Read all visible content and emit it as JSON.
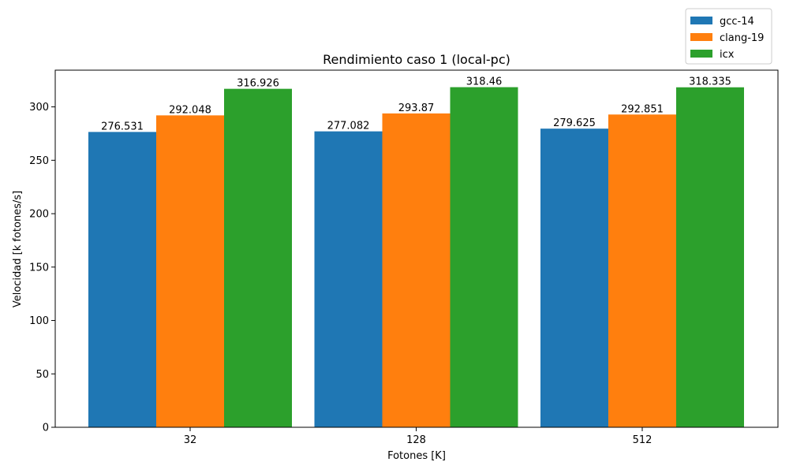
{
  "chart_data": {
    "type": "bar",
    "title": "Rendimiento caso 1 (local-pc)",
    "xlabel": "Fotones [K]",
    "ylabel": "Velocidad [k fotones/s]",
    "categories": [
      "32",
      "128",
      "512"
    ],
    "series": [
      {
        "name": "gcc-14",
        "color": "#1f77b4",
        "values": [
          276.531,
          277.082,
          279.625
        ]
      },
      {
        "name": "clang-19",
        "color": "#ff7f0e",
        "values": [
          292.048,
          293.87,
          292.851
        ]
      },
      {
        "name": "icx",
        "color": "#2ca02c",
        "values": [
          316.926,
          318.46,
          318.335
        ]
      }
    ],
    "ylim": [
      0,
      334.383
    ],
    "yticks": [
      0,
      50,
      100,
      150,
      200,
      250,
      300
    ],
    "legend_position": "top-right",
    "grid": false
  }
}
